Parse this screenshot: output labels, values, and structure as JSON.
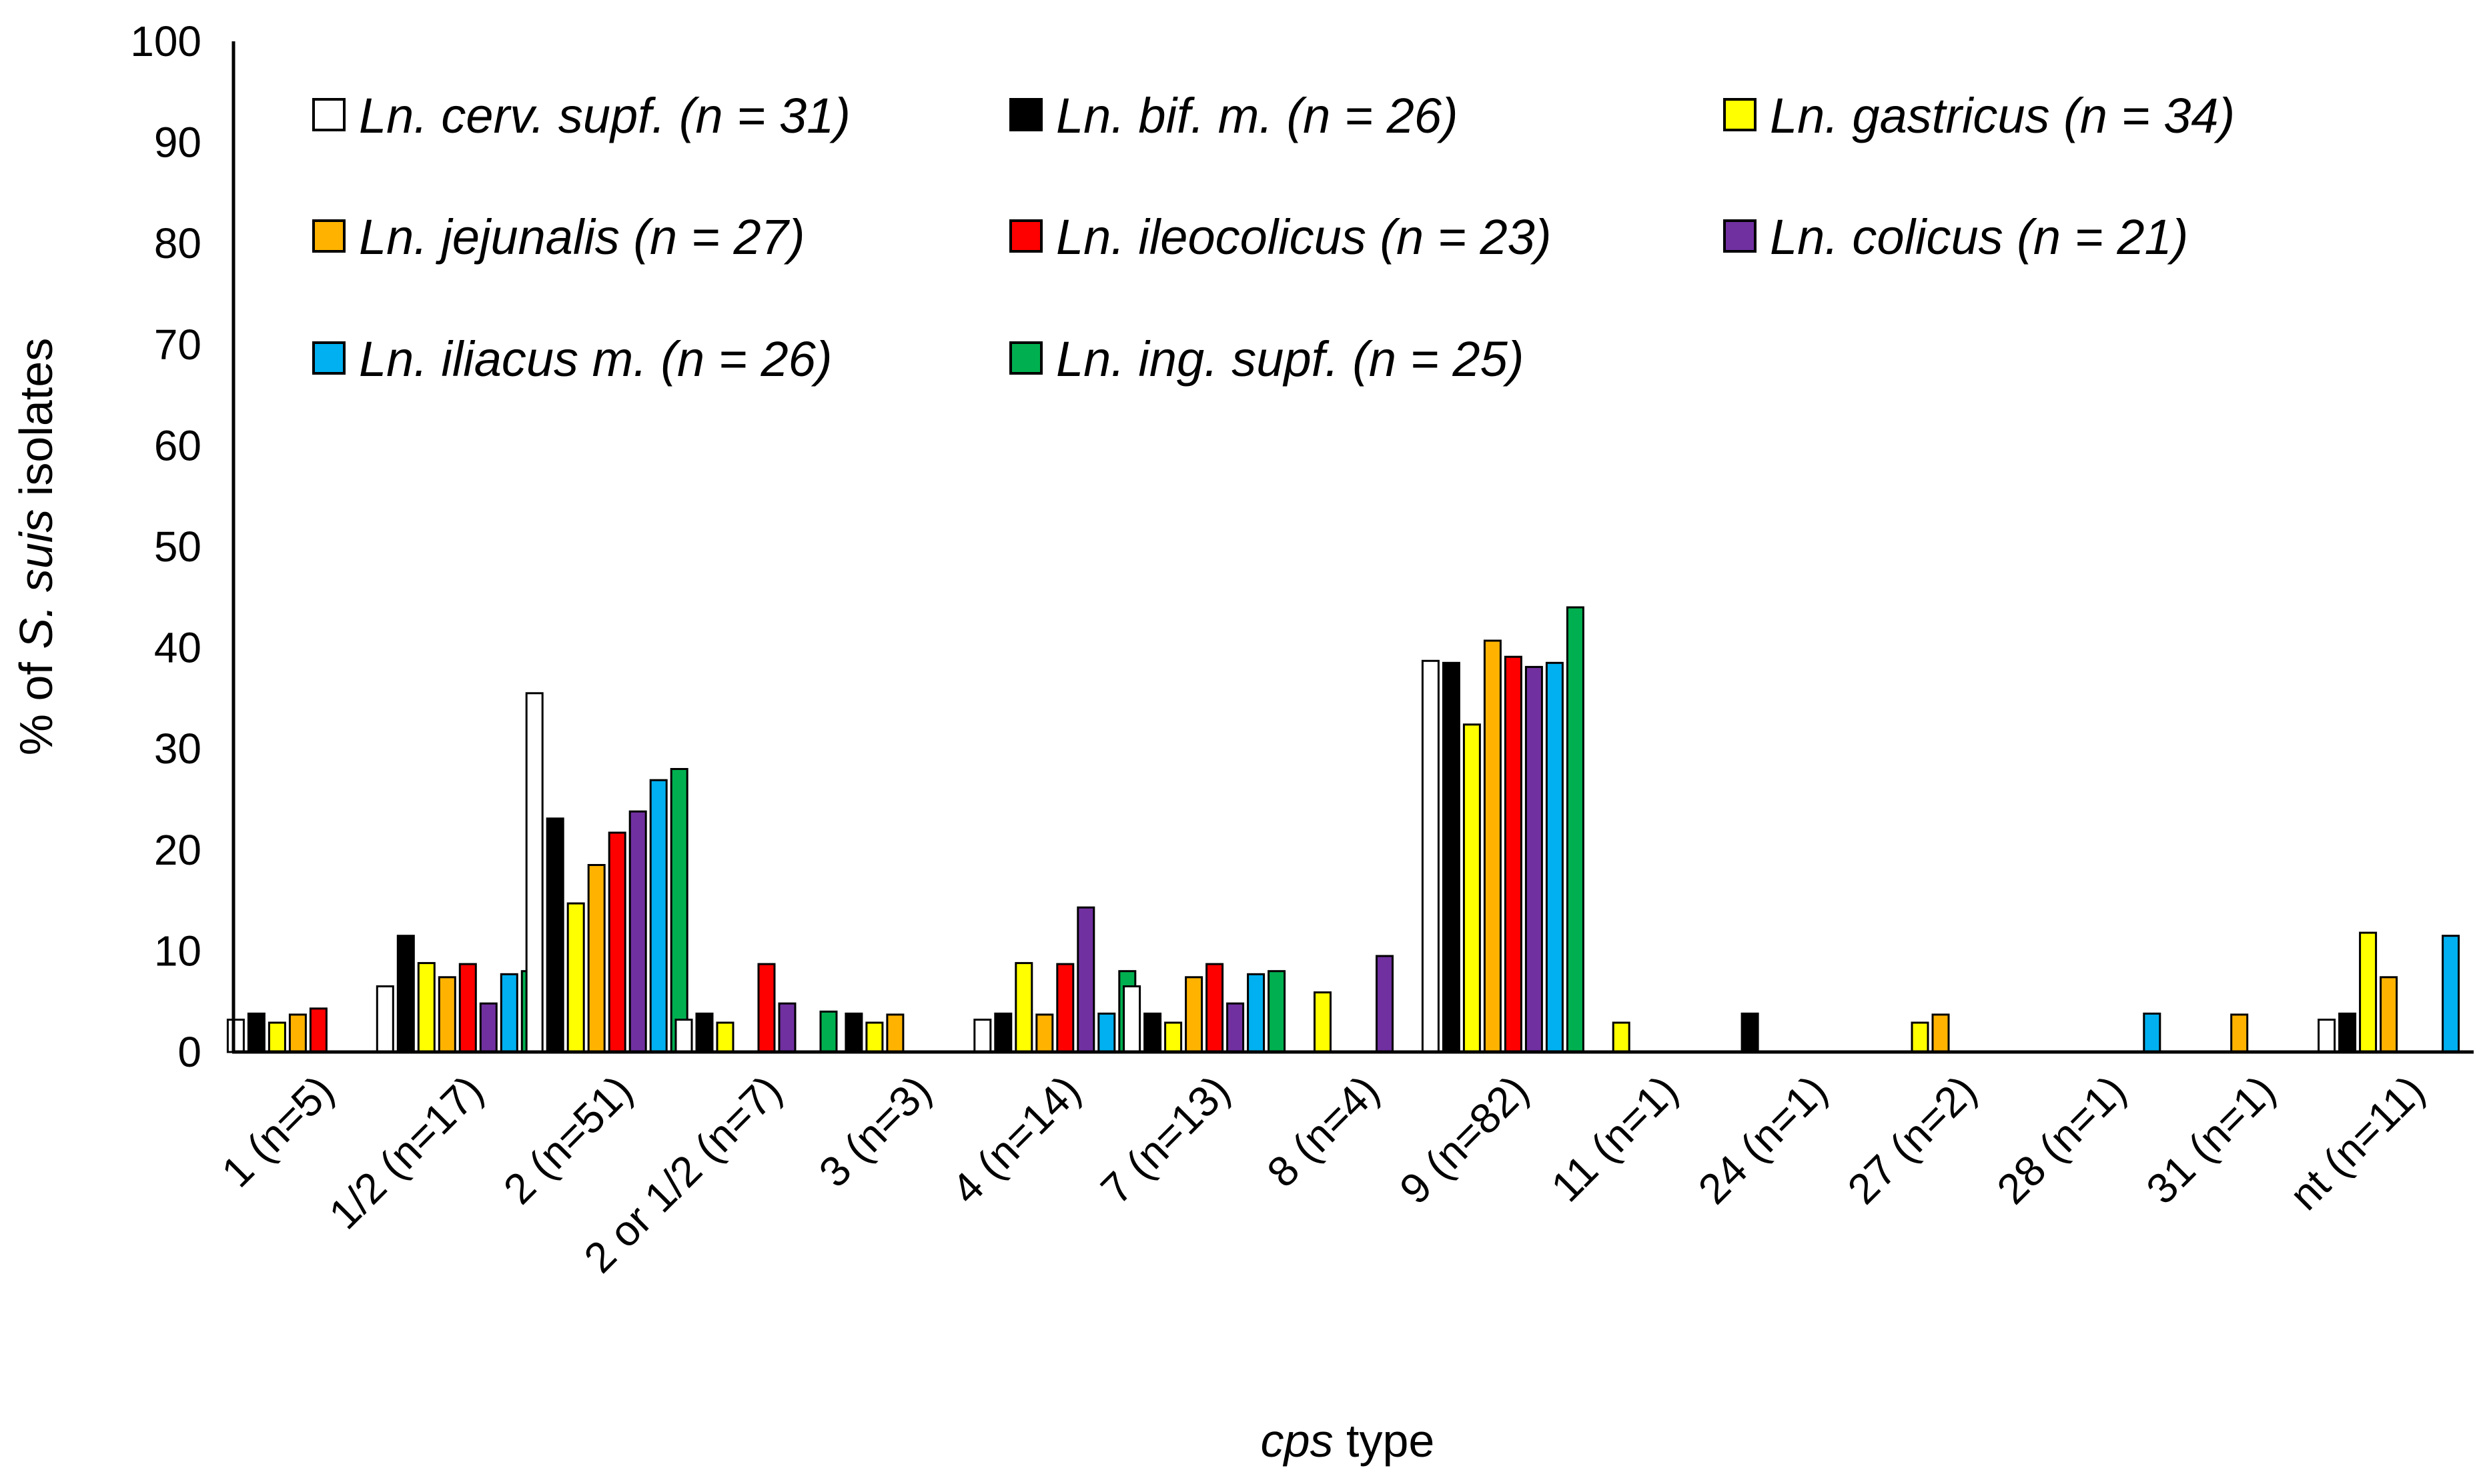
{
  "chart_data": {
    "type": "bar",
    "title": "",
    "xlabel_italic": "cps",
    "xlabel_rest": " type",
    "ylabel_prefix": "% of ",
    "ylabel_italic": "S. suis",
    "ylabel_suffix": " isolates",
    "ylim": [
      0,
      100
    ],
    "yticks": [
      "0",
      "10",
      "20",
      "30",
      "40",
      "50",
      "60",
      "70",
      "80",
      "90",
      "100"
    ],
    "grid": false,
    "legend_position": "top",
    "categories": [
      "1 (n=5)",
      "1/2 (n=17)",
      "2 (n=51)",
      "2 or 1/2 (n=7)",
      "3 (n=3)",
      "4 (n=14)",
      "7 (n=13)",
      "8 (n=4)",
      "9 (n=82)",
      "11 (n=1)",
      "24 (n=1)",
      "27 (n=2)",
      "28 (n=1)",
      "31 (n=1)",
      "nt (n=11)"
    ],
    "series": [
      {
        "name": "Ln. cerv. supf. (n = 31)",
        "color": "#FFFFFF",
        "values": [
          3.2,
          6.5,
          35.5,
          3.2,
          0,
          3.2,
          6.5,
          0,
          38.7,
          0,
          0,
          0,
          0,
          0,
          3.2
        ]
      },
      {
        "name": "Ln. bif. m. (n = 26)",
        "color": "#000000",
        "values": [
          3.8,
          11.5,
          23.1,
          3.8,
          3.8,
          3.8,
          3.8,
          0,
          38.5,
          0,
          3.8,
          0,
          0,
          0,
          3.8
        ]
      },
      {
        "name": "Ln. gastricus (n = 34)",
        "color": "#FFFF00",
        "values": [
          2.9,
          8.8,
          14.7,
          2.9,
          2.9,
          8.8,
          2.9,
          5.9,
          32.4,
          2.9,
          0,
          2.9,
          0,
          0,
          11.8
        ]
      },
      {
        "name": "Ln. jejunalis (n = 27)",
        "color": "#FFB300",
        "values": [
          3.7,
          7.4,
          18.5,
          0,
          3.7,
          3.7,
          7.4,
          0,
          40.7,
          0,
          0,
          3.7,
          0,
          3.7,
          7.4
        ]
      },
      {
        "name": "Ln. ileocolicus (n = 23)",
        "color": "#FF0000",
        "values": [
          4.3,
          8.7,
          21.7,
          8.7,
          0,
          8.7,
          8.7,
          0,
          39.1,
          0,
          0,
          0,
          0,
          0,
          0
        ]
      },
      {
        "name": "Ln. colicus (n = 21)",
        "color": "#7030A0",
        "values": [
          0,
          4.8,
          23.8,
          4.8,
          0,
          14.3,
          4.8,
          9.5,
          38.1,
          0,
          0,
          0,
          0,
          0,
          0
        ]
      },
      {
        "name": "Ln. iliacus m. (n = 26)",
        "color": "#00B0F0",
        "values": [
          0,
          7.7,
          26.9,
          0,
          0,
          3.8,
          7.7,
          0,
          38.5,
          0,
          0,
          0,
          3.8,
          0,
          11.5
        ]
      },
      {
        "name": "Ln. ing. supf. (n = 25)",
        "color": "#00B050",
        "values": [
          0,
          8.0,
          28.0,
          4.0,
          0,
          8.0,
          8.0,
          0,
          44.0,
          0,
          0,
          0,
          0,
          0,
          0
        ]
      }
    ]
  }
}
